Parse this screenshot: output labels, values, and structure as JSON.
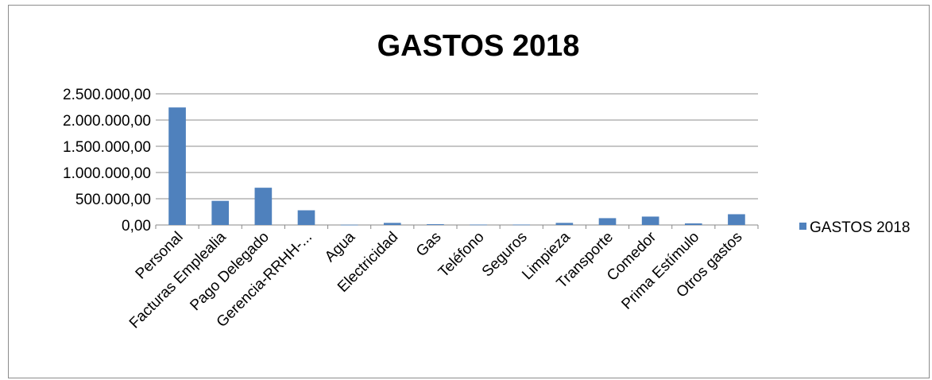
{
  "chart_data": {
    "type": "bar",
    "title": "GASTOS 2018",
    "xlabel": "",
    "ylabel": "",
    "categories": [
      "Personal",
      "Facturas Emplealia",
      "Pago Delegado",
      "Gerencia-RRHH-...",
      "Agua",
      "Electricidad",
      "Gas",
      "Teléfono",
      "Seguros",
      "Limpieza",
      "Transporte",
      "Comedor",
      "Prima Estímulo",
      "Otros gastos"
    ],
    "series": [
      {
        "name": "GASTOS 2018",
        "color": "#4f81bd",
        "values": [
          2240000,
          460000,
          710000,
          280000,
          5000,
          40000,
          15000,
          8000,
          8000,
          40000,
          130000,
          160000,
          30000,
          205000
        ]
      }
    ],
    "yticks": [
      "0,00",
      "500.000,00",
      "1.000.000,00",
      "1.500.000,00",
      "2.000.000,00",
      "2.500.000,00"
    ],
    "ylim": [
      0,
      2500000
    ],
    "grid": true,
    "legend_position": "right"
  }
}
